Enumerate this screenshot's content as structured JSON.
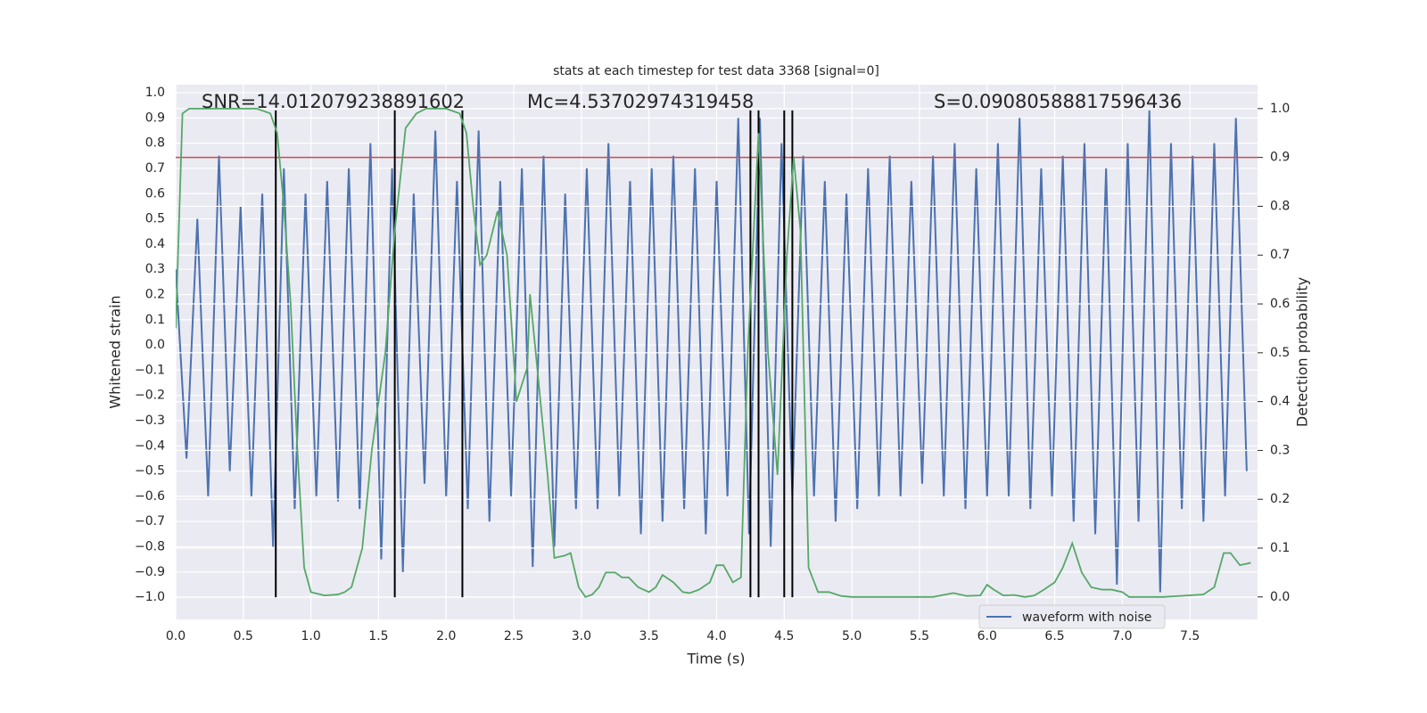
{
  "chart_data": {
    "type": "line",
    "title": "stats at each timestep for test data 3368 [signal=0]",
    "xlabel": "Time (s)",
    "ylabel": "Whitened strain",
    "y2label": "Detection probability",
    "annotations": [
      "SNR=14.012079238891602",
      "Mc=4.53702974319458",
      "S=0.09080588817596436"
    ],
    "xlim": [
      0,
      8
    ],
    "ylim": [
      -1.088,
      1.032
    ],
    "y2lim": [
      -0.046,
      1.049
    ],
    "xticks": [
      {
        "value": 0,
        "label": "0.0"
      },
      {
        "value": 0.5,
        "label": "0.5"
      },
      {
        "value": 1,
        "label": "1.0"
      },
      {
        "value": 1.5,
        "label": "1.5"
      },
      {
        "value": 2,
        "label": "2.0"
      },
      {
        "value": 2.5,
        "label": "2.5"
      },
      {
        "value": 3,
        "label": "3.0"
      },
      {
        "value": 3.5,
        "label": "3.5"
      },
      {
        "value": 4,
        "label": "4.0"
      },
      {
        "value": 4.5,
        "label": "4.5"
      },
      {
        "value": 5,
        "label": "5.0"
      },
      {
        "value": 5.5,
        "label": "5.5"
      },
      {
        "value": 6,
        "label": "6.0"
      },
      {
        "value": 6.5,
        "label": "6.5"
      },
      {
        "value": 7,
        "label": "7.0"
      },
      {
        "value": 7.5,
        "label": "7.5"
      }
    ],
    "yticks": [
      {
        "value": 1,
        "label": "1.0"
      },
      {
        "value": 0.9,
        "label": "0.9"
      },
      {
        "value": 0.8,
        "label": "0.8"
      },
      {
        "value": 0.7,
        "label": "0.7"
      },
      {
        "value": 0.6,
        "label": "0.6"
      },
      {
        "value": 0.5,
        "label": "0.5"
      },
      {
        "value": 0.4,
        "label": "0.4"
      },
      {
        "value": 0.3,
        "label": "0.3"
      },
      {
        "value": 0.2,
        "label": "0.2"
      },
      {
        "value": 0.1,
        "label": "0.1"
      },
      {
        "value": 0,
        "label": "0.0"
      },
      {
        "value": -0.1,
        "label": "−0.1"
      },
      {
        "value": -0.2,
        "label": "−0.2"
      },
      {
        "value": -0.3,
        "label": "−0.3"
      },
      {
        "value": -0.4,
        "label": "−0.4"
      },
      {
        "value": -0.5,
        "label": "−0.5"
      },
      {
        "value": -0.6,
        "label": "−0.6"
      },
      {
        "value": -0.7,
        "label": "−0.7"
      },
      {
        "value": -0.8,
        "label": "−0.8"
      },
      {
        "value": -0.9,
        "label": "−0.9"
      },
      {
        "value": -1,
        "label": "−1.0"
      }
    ],
    "y2ticks": [
      {
        "value": 0,
        "label": "0.0"
      },
      {
        "value": 0.1,
        "label": "0.1"
      },
      {
        "value": 0.2,
        "label": "0.2"
      },
      {
        "value": 0.3,
        "label": "0.3"
      },
      {
        "value": 0.4,
        "label": "0.4"
      },
      {
        "value": 0.5,
        "label": "0.5"
      },
      {
        "value": 0.6,
        "label": "0.6"
      },
      {
        "value": 0.7,
        "label": "0.7"
      },
      {
        "value": 0.8,
        "label": "0.8"
      },
      {
        "value": 0.9,
        "label": "0.9"
      },
      {
        "value": 1,
        "label": "1.0"
      }
    ],
    "grid": true,
    "legend": "lower right",
    "threshold": 0.9,
    "threshold_color": "#c44e52",
    "vlines": [
      0.74,
      1.62,
      2.12,
      4.25,
      4.31,
      4.5,
      4.56
    ],
    "vline_ylim": [
      -1.0,
      0.93
    ],
    "vline_color": "#000000",
    "series": [
      {
        "name": "waveform with noise",
        "color": "#4c72b0",
        "x": [
          0,
          0.08,
          0.16,
          0.24,
          0.32,
          0.4,
          0.48,
          0.56,
          0.64,
          0.72,
          0.8,
          0.88,
          0.96,
          1.04,
          1.12,
          1.2,
          1.28,
          1.36,
          1.44,
          1.52,
          1.6,
          1.68,
          1.76,
          1.84,
          1.92,
          2,
          2.08,
          2.16,
          2.24,
          2.32,
          2.4,
          2.48,
          2.56,
          2.64,
          2.72,
          2.8,
          2.88,
          2.96,
          3.04,
          3.12,
          3.2,
          3.28,
          3.36,
          3.44,
          3.52,
          3.6,
          3.68,
          3.76,
          3.84,
          3.92,
          4,
          4.08,
          4.16,
          4.24,
          4.32,
          4.4,
          4.48,
          4.56,
          4.64,
          4.72,
          4.8,
          4.88,
          4.96,
          5.04,
          5.12,
          5.2,
          5.28,
          5.36,
          5.44,
          5.52,
          5.6,
          5.68,
          5.76,
          5.84,
          5.92,
          6,
          6.08,
          6.16,
          6.24,
          6.32,
          6.4,
          6.48,
          6.56,
          6.64,
          6.72,
          6.8,
          6.88,
          6.96,
          7.04,
          7.12,
          7.2,
          7.28,
          7.36,
          7.44,
          7.52,
          7.6,
          7.68,
          7.76,
          7.84,
          7.92
        ],
        "values": [
          0.3,
          -0.45,
          0.5,
          -0.6,
          0.75,
          -0.5,
          0.55,
          -0.6,
          0.6,
          -0.8,
          0.7,
          -0.65,
          0.6,
          -0.6,
          0.65,
          -0.62,
          0.7,
          -0.65,
          0.8,
          -0.85,
          0.7,
          -0.9,
          0.6,
          -0.55,
          0.85,
          -0.6,
          0.65,
          -0.65,
          0.85,
          -0.7,
          0.65,
          -0.6,
          0.7,
          -0.88,
          0.75,
          -0.8,
          0.6,
          -0.65,
          0.7,
          -0.65,
          0.8,
          -0.6,
          0.65,
          -0.75,
          0.7,
          -0.7,
          0.75,
          -0.65,
          0.7,
          -0.75,
          0.65,
          -0.6,
          0.9,
          -0.75,
          0.9,
          -0.8,
          0.8,
          -0.6,
          0.75,
          -0.6,
          0.65,
          -0.7,
          0.6,
          -0.65,
          0.7,
          -0.6,
          0.75,
          -0.6,
          0.65,
          -0.55,
          0.75,
          -0.6,
          0.8,
          -0.65,
          0.7,
          -0.6,
          0.8,
          -0.6,
          0.9,
          -0.65,
          0.7,
          -0.6,
          0.75,
          -0.7,
          0.8,
          -0.75,
          0.7,
          -0.95,
          0.8,
          -0.7,
          0.93,
          -0.98,
          0.8,
          -0.65,
          0.75,
          -0.7,
          0.8,
          -0.6,
          0.9,
          -0.5
        ]
      },
      {
        "color": "#55a868",
        "axis": "y2",
        "x": [
          0,
          0.05,
          0.1,
          0.2,
          0.4,
          0.6,
          0.7,
          0.75,
          0.8,
          0.85,
          0.9,
          0.95,
          1,
          1.1,
          1.2,
          1.25,
          1.3,
          1.38,
          1.45,
          1.55,
          1.62,
          1.7,
          1.78,
          1.85,
          2,
          2.1,
          2.15,
          2.2,
          2.25,
          2.3,
          2.38,
          2.45,
          2.52,
          2.6,
          2.62,
          2.68,
          2.75,
          2.8,
          2.88,
          2.92,
          2.98,
          3.03,
          3.08,
          3.13,
          3.18,
          3.25,
          3.3,
          3.35,
          3.42,
          3.5,
          3.55,
          3.6,
          3.68,
          3.75,
          3.8,
          3.87,
          3.95,
          4,
          4.05,
          4.12,
          4.18,
          4.23,
          4.31,
          4.38,
          4.45,
          4.52,
          4.57,
          4.62,
          4.68,
          4.75,
          4.83,
          4.92,
          5,
          5.3,
          5.6,
          5.75,
          5.85,
          5.95,
          6,
          6.05,
          6.12,
          6.2,
          6.28,
          6.35,
          6.42,
          6.5,
          6.56,
          6.63,
          6.7,
          6.77,
          6.85,
          6.92,
          7,
          7.05,
          7.3,
          7.6,
          7.68,
          7.75,
          7.8,
          7.87,
          7.95
        ],
        "values": [
          0.55,
          0.99,
          1,
          1,
          1,
          1,
          0.99,
          0.95,
          0.8,
          0.6,
          0.3,
          0.06,
          0.01,
          0.003,
          0.005,
          0.01,
          0.02,
          0.1,
          0.3,
          0.5,
          0.75,
          0.96,
          0.99,
          1,
          1,
          0.99,
          0.95,
          0.8,
          0.68,
          0.7,
          0.79,
          0.7,
          0.4,
          0.47,
          0.62,
          0.45,
          0.25,
          0.08,
          0.085,
          0.09,
          0.02,
          0,
          0.005,
          0.02,
          0.05,
          0.05,
          0.04,
          0.04,
          0.02,
          0.01,
          0.02,
          0.045,
          0.03,
          0.01,
          0.008,
          0.015,
          0.03,
          0.065,
          0.065,
          0.03,
          0.04,
          0.5,
          0.95,
          0.5,
          0.25,
          0.7,
          0.9,
          0.75,
          0.06,
          0.01,
          0.01,
          0.002,
          0,
          0,
          0,
          0.008,
          0.002,
          0.003,
          0.025,
          0.015,
          0.003,
          0.004,
          0,
          0.003,
          0.015,
          0.03,
          0.06,
          0.11,
          0.05,
          0.02,
          0.015,
          0.015,
          0.01,
          0,
          0,
          0.005,
          0.02,
          0.09,
          0.09,
          0.065,
          0.07
        ]
      }
    ]
  }
}
